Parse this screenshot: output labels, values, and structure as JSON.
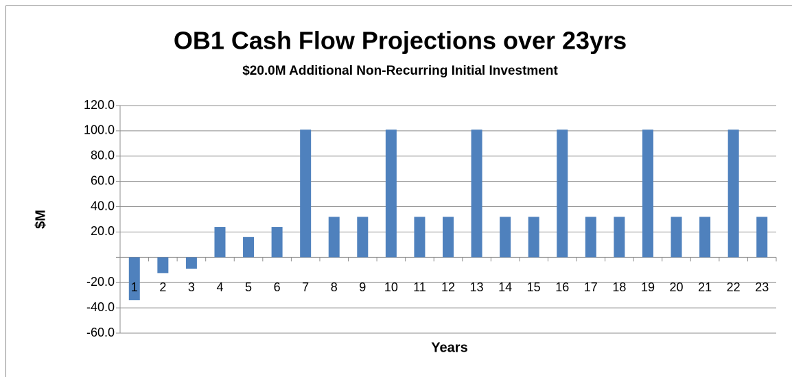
{
  "chart_data": {
    "type": "bar",
    "title": "OB1 Cash Flow Projections over 23yrs",
    "subtitle": "$20.0M Additional Non-Recurring Initial Investment",
    "y_label": "$M",
    "x_label": "Years",
    "categories": [
      "1",
      "2",
      "3",
      "4",
      "5",
      "6",
      "7",
      "8",
      "9",
      "10",
      "11",
      "12",
      "13",
      "14",
      "15",
      "16",
      "17",
      "18",
      "19",
      "20",
      "21",
      "22",
      "23"
    ],
    "values": [
      -34,
      -12.5,
      -9,
      24,
      16,
      24,
      101,
      32,
      32,
      101,
      32,
      32,
      101,
      32,
      32,
      101,
      32,
      32,
      101,
      32,
      32,
      101,
      32
    ],
    "color": "#4f81bd",
    "ylim": [
      -60,
      120
    ],
    "yticks": [
      {
        "value": -60,
        "label": "-60.0"
      },
      {
        "value": -40,
        "label": "-40.0"
      },
      {
        "value": -20,
        "label": "-20.0"
      },
      {
        "value": 20,
        "label": "20.0"
      },
      {
        "value": 40,
        "label": "40.0"
      },
      {
        "value": 60,
        "label": "60.0"
      },
      {
        "value": 80,
        "label": "80.0"
      },
      {
        "value": 100,
        "label": "100.0"
      },
      {
        "value": 120,
        "label": "120.0"
      }
    ],
    "grid": true
  }
}
